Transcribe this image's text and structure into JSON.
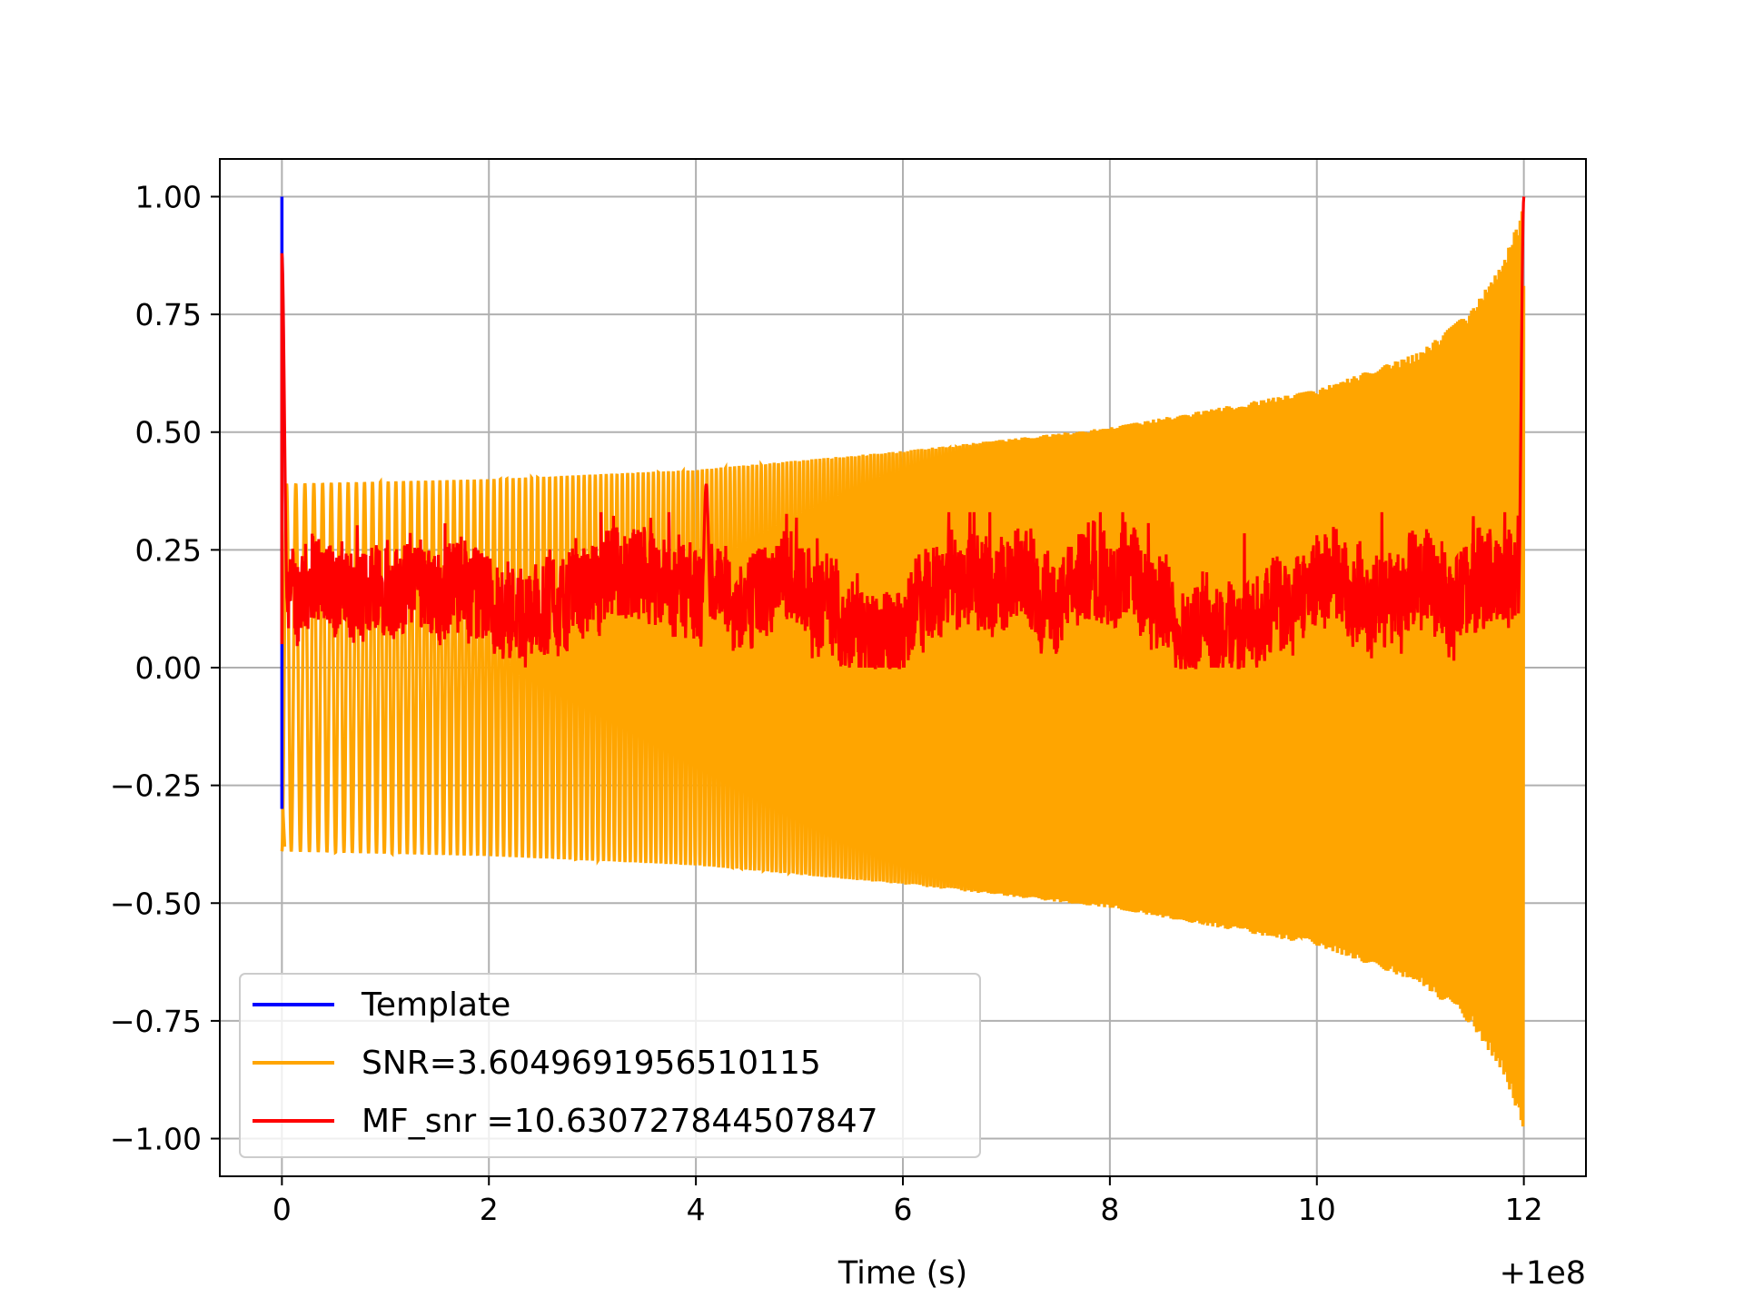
{
  "chart_data": {
    "type": "line",
    "title": "",
    "xlabel": "Time (s)",
    "ylabel": "",
    "x_offset_label": "+1e8",
    "xlim": [
      -0.6,
      12.6
    ],
    "ylim": [
      -1.08,
      1.08
    ],
    "grid": true,
    "xticks": [
      0,
      2,
      4,
      6,
      8,
      10,
      12
    ],
    "xtick_labels": [
      "0",
      "2",
      "4",
      "6",
      "8",
      "10",
      "12"
    ],
    "yticks": [
      1.0,
      0.75,
      0.5,
      0.25,
      0.0,
      -0.25,
      -0.5,
      -0.75,
      -1.0
    ],
    "ytick_labels": [
      "1.00",
      "0.75",
      "0.50",
      "0.25",
      "0.00",
      "−0.25",
      "−0.50",
      "−0.75",
      "−1.00"
    ],
    "legend_position": "lower-left",
    "series": [
      {
        "name": "Template",
        "color": "#0000ff",
        "description_values": {
          "t_start": 0.0,
          "t_end": 0.01,
          "y_min": -0.3,
          "y_max": 1.0
        }
      },
      {
        "name": "SNR=3.6049691956510115",
        "color": "#ffa500",
        "envelope": {
          "t": [
            0.0,
            2.0,
            4.0,
            6.0,
            8.0,
            10.0,
            11.0,
            11.5,
            11.8,
            12.0
          ],
          "amplitude": [
            0.39,
            0.4,
            0.42,
            0.46,
            0.51,
            0.59,
            0.67,
            0.76,
            0.86,
            0.98
          ]
        },
        "t_range": [
          0.0,
          12.0
        ]
      },
      {
        "name": "MF_snr =10.630727844507847",
        "color": "#ff0000",
        "baseline_range": [
          0.0,
          0.3
        ],
        "peaks": [
          {
            "t": 0.0,
            "y": 0.88
          },
          {
            "t": 4.1,
            "y": 0.39
          },
          {
            "t": 12.0,
            "y": 1.0
          }
        ],
        "t_range": [
          0.0,
          12.0
        ]
      }
    ]
  }
}
